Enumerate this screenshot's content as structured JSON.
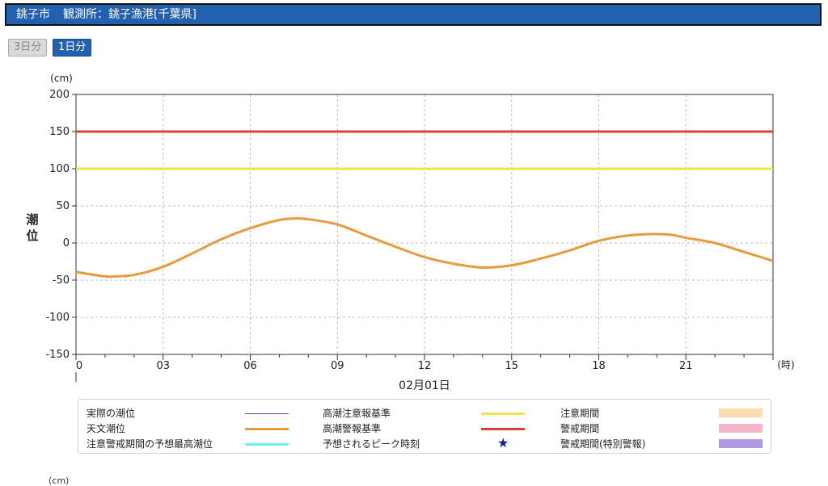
{
  "header": {
    "location": "銚子市",
    "station": "観測所：銚子漁港[千葉県]"
  },
  "buttons": {
    "three_day": "3日分",
    "one_day": "1日分"
  },
  "chart_data": {
    "type": "line",
    "ylabel": "潮位",
    "yunit": "(cm)",
    "xunit": "(時)",
    "date_label": "02月01日",
    "ylim": [
      -150,
      200
    ],
    "yticks": [
      200,
      150,
      100,
      50,
      0,
      -50,
      -100,
      -150
    ],
    "xlim": [
      0,
      24
    ],
    "xticks": [
      {
        "h": 0,
        "label": "0"
      },
      {
        "h": 3,
        "label": "03"
      },
      {
        "h": 6,
        "label": "06"
      },
      {
        "h": 9,
        "label": "09"
      },
      {
        "h": 12,
        "label": "12"
      },
      {
        "h": 15,
        "label": "15"
      },
      {
        "h": 18,
        "label": "18"
      },
      {
        "h": 21,
        "label": "21"
      }
    ],
    "grid": true,
    "series": [
      {
        "name": "高潮警報基準",
        "color": "#d9432f",
        "constant": 150
      },
      {
        "name": "高潮注意報基準",
        "color": "#f2e14a",
        "constant": 100
      },
      {
        "name": "天文潮位",
        "color": "#e89a3c",
        "x": [
          0,
          1,
          1.3,
          2,
          3,
          4,
          5,
          6,
          7,
          7.6,
          8,
          9,
          10,
          11,
          12,
          13,
          14,
          15,
          16,
          17,
          18,
          19,
          19.8,
          20.5,
          21,
          22,
          23,
          24
        ],
        "y": [
          -39,
          -45,
          -45,
          -43,
          -32,
          -14,
          5,
          20,
          31,
          33,
          32,
          25,
          10,
          -5,
          -19,
          -28,
          -33,
          -30,
          -21,
          -10,
          3,
          10,
          12,
          11,
          7,
          0,
          -12,
          -24
        ]
      }
    ]
  },
  "legend": [
    {
      "label": "実際の潮位",
      "kind": "line",
      "color": "#6b4a9e"
    },
    {
      "label": "天文潮位",
      "kind": "line",
      "color": "#e89a3c"
    },
    {
      "label": "注意警戒期間の予想最高潮位",
      "kind": "line",
      "color": "#6ff0f0"
    },
    {
      "label": "高潮注意報基準",
      "kind": "line",
      "color": "#f2e14a"
    },
    {
      "label": "高潮警報基準",
      "kind": "line",
      "color": "#d9432f"
    },
    {
      "label": "予想されるピーク時刻",
      "kind": "star",
      "symbol": "★",
      "color": "#0a1aa8"
    },
    {
      "label": "注意期間",
      "kind": "box",
      "color": "#fbdcb0"
    },
    {
      "label": "警戒期間",
      "kind": "box",
      "color": "#f5b6c8"
    },
    {
      "label": "警戒期間(特別警報)",
      "kind": "box",
      "color": "#b09adf"
    }
  ],
  "next_chart_unit": "(cm)"
}
